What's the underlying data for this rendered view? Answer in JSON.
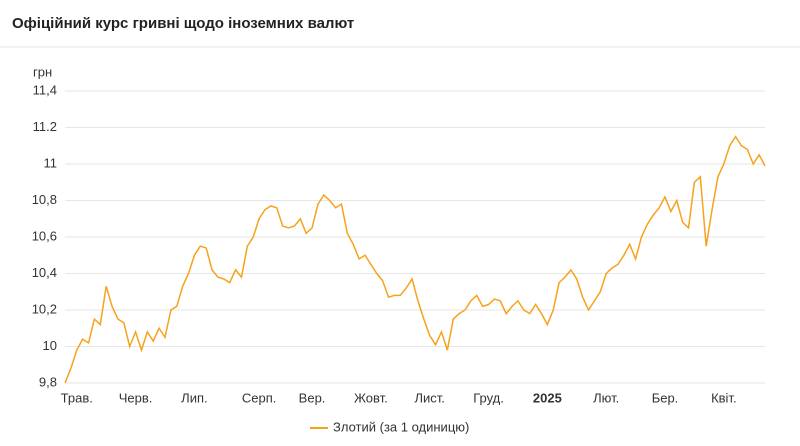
{
  "chart_data": {
    "type": "line",
    "title": "Офіційний курс гривні щодо іноземних валют",
    "y_label": "грн",
    "categories": [
      null,
      null,
      "Трав.",
      null,
      null,
      null,
      null,
      null,
      null,
      null,
      null,
      null,
      "Черв.",
      null,
      null,
      null,
      null,
      null,
      null,
      null,
      null,
      null,
      "Лип.",
      null,
      null,
      null,
      null,
      null,
      null,
      null,
      null,
      null,
      null,
      "Серп.",
      null,
      null,
      null,
      null,
      null,
      null,
      null,
      null,
      "Вер.",
      null,
      null,
      null,
      null,
      null,
      null,
      null,
      null,
      null,
      "Жовт.",
      null,
      null,
      null,
      null,
      null,
      null,
      null,
      null,
      null,
      "Лист.",
      null,
      null,
      null,
      null,
      null,
      null,
      null,
      null,
      null,
      "Груд.",
      null,
      null,
      null,
      null,
      null,
      null,
      null,
      null,
      null,
      "2025",
      null,
      null,
      null,
      null,
      null,
      null,
      null,
      null,
      null,
      "Лют.",
      null,
      null,
      null,
      null,
      null,
      null,
      null,
      null,
      null,
      "Бер.",
      null,
      null,
      null,
      null,
      null,
      null,
      null,
      null,
      null,
      "Квіт.",
      null,
      null,
      null,
      null,
      null,
      null,
      null
    ],
    "series": [
      {
        "name": "Злотий (за 1 одиницю)",
        "color": "#f7a21b",
        "values": [
          9.8,
          9.88,
          9.98,
          10.04,
          10.02,
          10.15,
          10.12,
          10.33,
          10.22,
          10.15,
          10.13,
          10.0,
          10.08,
          9.98,
          10.08,
          10.03,
          10.1,
          10.05,
          10.2,
          10.22,
          10.33,
          10.4,
          10.5,
          10.55,
          10.54,
          10.42,
          10.38,
          10.37,
          10.35,
          10.42,
          10.38,
          10.55,
          10.6,
          10.7,
          10.75,
          10.77,
          10.76,
          10.66,
          10.65,
          10.66,
          10.7,
          10.62,
          10.65,
          10.78,
          10.83,
          10.8,
          10.76,
          10.78,
          10.62,
          10.56,
          10.48,
          10.5,
          10.45,
          10.4,
          10.36,
          10.27,
          10.28,
          10.28,
          10.32,
          10.37,
          10.25,
          10.15,
          10.06,
          10.01,
          10.08,
          9.98,
          10.15,
          10.18,
          10.2,
          10.25,
          10.28,
          10.22,
          10.23,
          10.26,
          10.25,
          10.18,
          10.22,
          10.25,
          10.2,
          10.18,
          10.23,
          10.18,
          10.12,
          10.2,
          10.35,
          10.38,
          10.42,
          10.37,
          10.27,
          10.2,
          10.25,
          10.3,
          10.4,
          10.43,
          10.45,
          10.5,
          10.56,
          10.48,
          10.6,
          10.67,
          10.72,
          10.76,
          10.82,
          10.74,
          10.8,
          10.68,
          10.65,
          10.9,
          10.93,
          10.55,
          10.75,
          10.93,
          11.0,
          11.1,
          11.15,
          11.1,
          11.08,
          11.0,
          11.05,
          10.99
        ]
      }
    ],
    "ylim": [
      9.8,
      11.4
    ],
    "yticks": [
      {
        "value": 9.8,
        "label": "9,8"
      },
      10,
      {
        "value": 10.2,
        "label": "10,2"
      },
      {
        "value": 10.4,
        "label": "10,4"
      },
      {
        "value": 10.6,
        "label": "10,6"
      },
      {
        "value": 10.8,
        "label": "10,8"
      },
      11,
      11.2,
      {
        "value": 11.4,
        "label": "11,4"
      }
    ],
    "grid": true
  }
}
